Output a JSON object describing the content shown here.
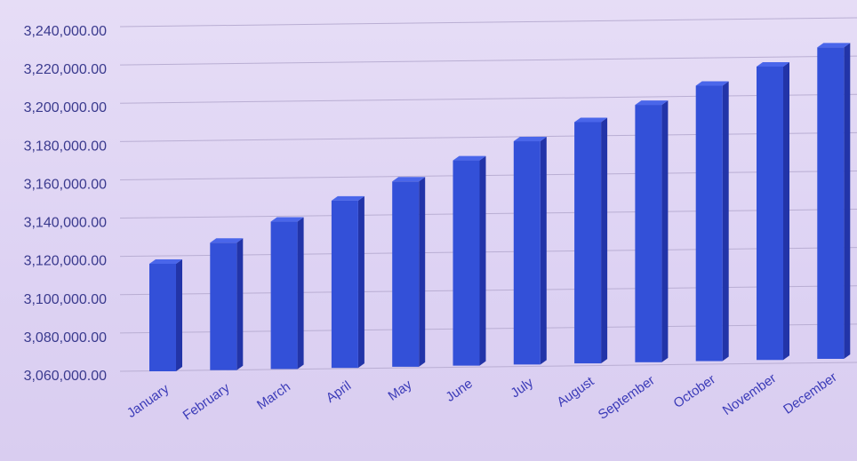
{
  "chart_data": {
    "type": "bar",
    "title": "",
    "xlabel": "",
    "ylabel": "",
    "categories": [
      "January",
      "February",
      "March",
      "April",
      "May",
      "June",
      "July",
      "August",
      "September",
      "October",
      "November",
      "December"
    ],
    "values": [
      3118000,
      3129000,
      3140000,
      3151000,
      3161000,
      3172000,
      3182000,
      3192000,
      3201000,
      3211000,
      3221000,
      3231000
    ],
    "yticks": [
      "3,060,000.00",
      "3,080,000.00",
      "3,100,000.00",
      "3,120,000.00",
      "3,140,000.00",
      "3,160,000.00",
      "3,180,000.00",
      "3,200,000.00",
      "3,220,000.00",
      "3,240,000.00"
    ],
    "ylim": [
      3060000,
      3240000
    ],
    "grid": true,
    "bar_color": "#3350d8"
  }
}
